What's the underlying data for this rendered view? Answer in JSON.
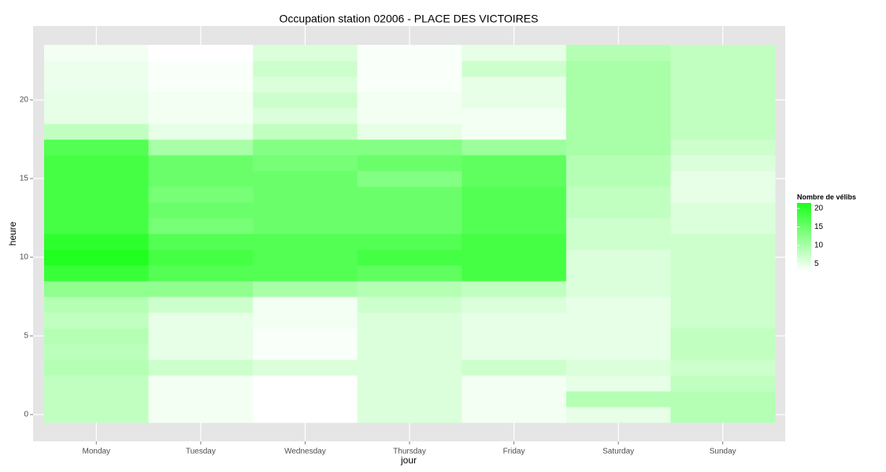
{
  "chart_data": {
    "type": "heatmap",
    "title": "Occupation station 02006 - PLACE DES VICTOIRES",
    "x_label": "jour",
    "y_label": "heure",
    "legend_title": "Nombre de vélibs",
    "categories": [
      "Monday",
      "Tuesday",
      "Wednesday",
      "Thursday",
      "Friday",
      "Saturday",
      "Sunday"
    ],
    "y": [
      0,
      1,
      2,
      3,
      4,
      5,
      6,
      7,
      8,
      9,
      10,
      11,
      12,
      13,
      14,
      15,
      16,
      17,
      18,
      19,
      20,
      21,
      22,
      23
    ],
    "values": [
      [
        8,
        8,
        8,
        9,
        8.5,
        9,
        8,
        9,
        12,
        19,
        21,
        20,
        18,
        18,
        18,
        18,
        18,
        17,
        8,
        5,
        5,
        4.5,
        4.5,
        4
      ],
      [
        4,
        4,
        4,
        7,
        5,
        5,
        5,
        7,
        12,
        17,
        18,
        17,
        14,
        15,
        14,
        15,
        15,
        10,
        5,
        4,
        4,
        3.5,
        3.5,
        3
      ],
      [
        3,
        3,
        3,
        6,
        3.5,
        3.5,
        4,
        4,
        10,
        17,
        17,
        17,
        15,
        15,
        15,
        15,
        14,
        13,
        8,
        6,
        7,
        6,
        7,
        6
      ],
      [
        6,
        6,
        6,
        6,
        6,
        6,
        6,
        7,
        9,
        16,
        18,
        17,
        15,
        15,
        15,
        13,
        15,
        13,
        5,
        4,
        4,
        3.5,
        3.5,
        3.5
      ],
      [
        4,
        4,
        4,
        7,
        5,
        5,
        5,
        6,
        8,
        18,
        18,
        18,
        17,
        17,
        17,
        16,
        16,
        11,
        4,
        4,
        5,
        5,
        7,
        5
      ],
      [
        5,
        9,
        5,
        6,
        5,
        5,
        5,
        5,
        6,
        6,
        6,
        7,
        7,
        8,
        8,
        9,
        9,
        10,
        10,
        10,
        10,
        10,
        10,
        9
      ],
      [
        9,
        9,
        8,
        7,
        8,
        8,
        7,
        7,
        7,
        7,
        7,
        7,
        6,
        6,
        5,
        5,
        6,
        7,
        8,
        8,
        8,
        8,
        8,
        8
      ]
    ],
    "ylim": [
      -1.7,
      24.7
    ],
    "yticks": [
      0,
      5,
      10,
      15,
      20
    ],
    "colorlim": [
      3,
      21.5
    ],
    "colorticks": [
      5,
      10,
      15,
      20
    ],
    "color_low": "#ffffff",
    "color_high": "#1aff1a",
    "panel_color": "#e5e5e5",
    "grid": true
  }
}
